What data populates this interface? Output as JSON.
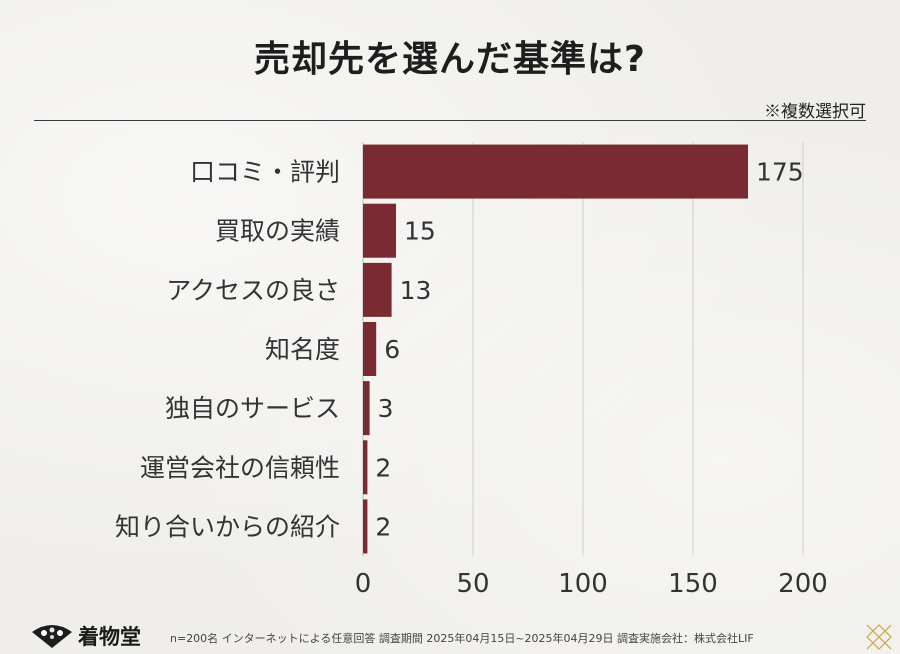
{
  "title": "売却先を選んだ基準は?",
  "note": "※複数選択可",
  "chart_data": {
    "type": "bar",
    "orientation": "horizontal",
    "categories": [
      "口コミ・評判",
      "買取の実績",
      "アクセスの良さ",
      "知名度",
      "独自のサービス",
      "運営会社の信頼性",
      "知り合いからの紹介"
    ],
    "values": [
      175,
      15,
      13,
      6,
      3,
      2,
      2
    ],
    "xlim": [
      0,
      200
    ],
    "xticks": [
      0,
      50,
      100,
      150,
      200
    ],
    "xlabel": "",
    "ylabel": "",
    "grid": true,
    "colors": {
      "bar": "#7a2a31",
      "grid": "#cfcfcf",
      "text": "#333333"
    }
  },
  "footer": {
    "logo_name": "着物堂",
    "footnote": "n=200名 インターネットによる任意回答 調査期間 2025年04月15日~2025年04月29日 調査実施会社：株式会社LIF"
  }
}
